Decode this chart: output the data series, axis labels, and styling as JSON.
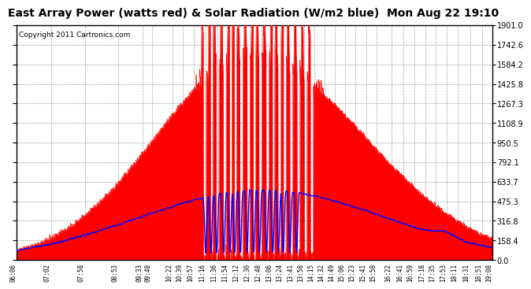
{
  "title": "East Array Power (watts red) & Solar Radiation (W/m2 blue)  Mon Aug 22 19:10",
  "copyright": "Copyright 2011 Cartronics.com",
  "yticks": [
    0.0,
    158.4,
    316.8,
    475.3,
    633.7,
    792.1,
    950.5,
    1108.9,
    1267.3,
    1425.8,
    1584.2,
    1742.6,
    1901.0
  ],
  "ylim": [
    0.0,
    1901.0
  ],
  "bg_color": "#ffffff",
  "plot_bg_color": "#ffffff",
  "grid_color": "#888888",
  "red_color": "#ff0000",
  "blue_color": "#0000ff",
  "title_fontsize": 10,
  "copyright_fontsize": 6.5,
  "tick_fontsize": 7,
  "xtick_labels": [
    "06:06",
    "07:02",
    "07:58",
    "08:53",
    "09:33",
    "09:48",
    "10:22",
    "10:39",
    "10:57",
    "11:16",
    "11:36",
    "11:54",
    "12:12",
    "12:30",
    "12:48",
    "13:06",
    "13:24",
    "13:41",
    "13:58",
    "14:15",
    "14:32",
    "14:49",
    "15:06",
    "15:23",
    "15:41",
    "15:58",
    "16:22",
    "16:41",
    "16:59",
    "17:18",
    "17:35",
    "17:53",
    "18:11",
    "18:31",
    "18:51",
    "19:08"
  ]
}
